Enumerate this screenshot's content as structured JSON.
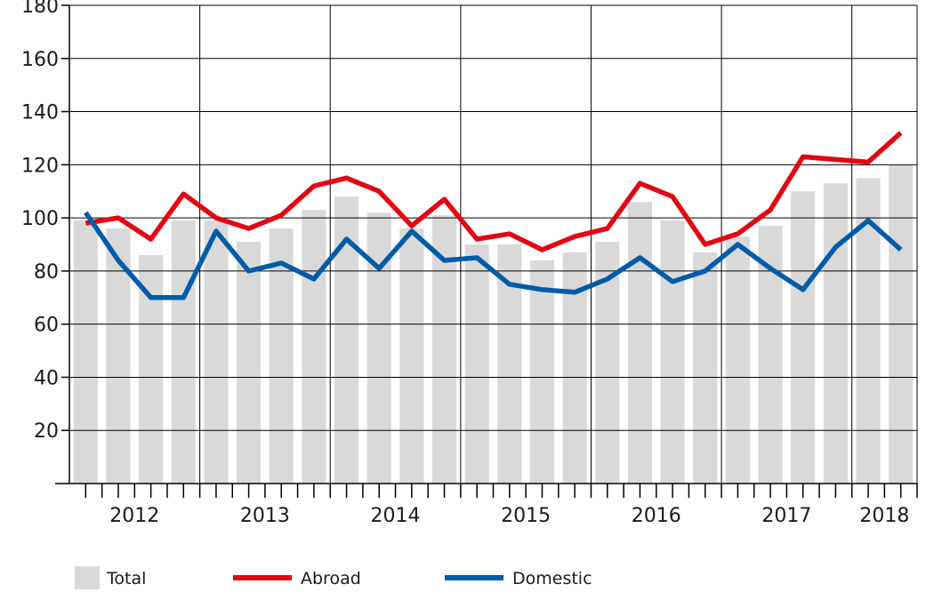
{
  "chart_data": {
    "type": "bar+line",
    "title": "",
    "xlabel": "",
    "ylabel": "",
    "ylim": [
      0,
      180
    ],
    "yticks": [
      20,
      40,
      60,
      80,
      100,
      120,
      140,
      160,
      180
    ],
    "grid": true,
    "legend_position": "bottom",
    "years": [
      "2012",
      "2013",
      "2014",
      "2015",
      "2016",
      "2017",
      "2018"
    ],
    "x_quarters_per_year": 4,
    "series": [
      {
        "name": "Total",
        "kind": "bar",
        "color": "#d9d9da",
        "values": [
          99,
          96,
          86,
          99,
          99,
          91,
          96,
          103,
          108,
          102,
          96,
          101,
          90,
          90,
          84,
          87,
          91,
          106,
          99,
          87,
          93,
          97,
          110,
          113,
          115,
          120
        ]
      },
      {
        "name": "Abroad",
        "kind": "line",
        "color": "#e30613",
        "values": [
          98,
          100,
          92,
          109,
          100,
          96,
          101,
          112,
          115,
          110,
          97,
          107,
          92,
          94,
          88,
          93,
          96,
          113,
          108,
          90,
          94,
          103,
          123,
          122,
          121,
          132
        ]
      },
      {
        "name": "Domestic",
        "kind": "line",
        "color": "#005ca9",
        "values": [
          102,
          84,
          70,
          70,
          95,
          80,
          83,
          77,
          92,
          81,
          95,
          84,
          85,
          75,
          73,
          72,
          77,
          85,
          76,
          80,
          90,
          81,
          73,
          89,
          99,
          88
        ]
      }
    ]
  }
}
